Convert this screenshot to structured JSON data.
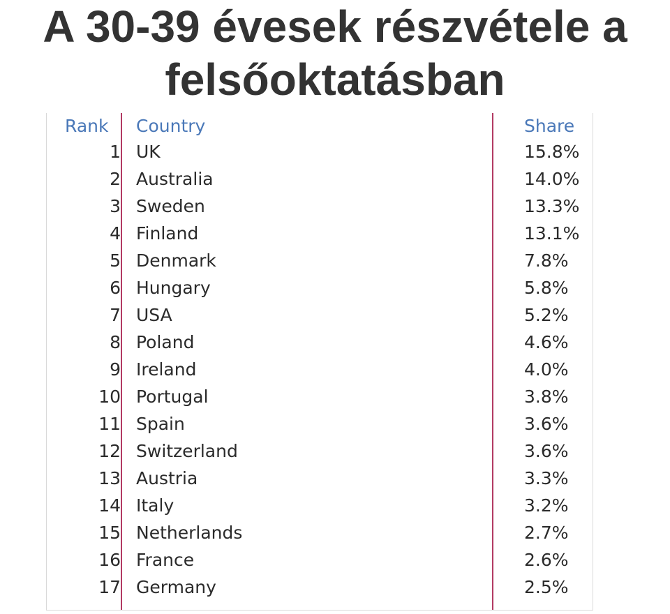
{
  "title": "A 30-39 évesek részvétele a felsőoktatásban",
  "table": {
    "headers": {
      "rank": "Rank",
      "country": "Country",
      "share": "Share"
    },
    "rows": [
      {
        "rank": "1",
        "country": "UK",
        "share": "15.8%"
      },
      {
        "rank": "2",
        "country": "Australia",
        "share": "14.0%"
      },
      {
        "rank": "3",
        "country": "Sweden",
        "share": "13.3%"
      },
      {
        "rank": "4",
        "country": "Finland",
        "share": "13.1%"
      },
      {
        "rank": "5",
        "country": "Denmark",
        "share": "7.8%"
      },
      {
        "rank": "6",
        "country": "Hungary",
        "share": "5.8%"
      },
      {
        "rank": "7",
        "country": "USA",
        "share": "5.2%"
      },
      {
        "rank": "8",
        "country": "Poland",
        "share": "4.6%"
      },
      {
        "rank": "9",
        "country": "Ireland",
        "share": "4.0%"
      },
      {
        "rank": "10",
        "country": "Portugal",
        "share": "3.8%"
      },
      {
        "rank": "11",
        "country": "Spain",
        "share": "3.6%"
      },
      {
        "rank": "12",
        "country": "Switzerland",
        "share": "3.6%"
      },
      {
        "rank": "13",
        "country": "Austria",
        "share": "3.3%"
      },
      {
        "rank": "14",
        "country": "Italy",
        "share": "3.2%"
      },
      {
        "rank": "15",
        "country": "Netherlands",
        "share": "2.7%"
      },
      {
        "rank": "16",
        "country": "France",
        "share": "2.6%"
      },
      {
        "rank": "17",
        "country": "Germany",
        "share": "2.5%"
      }
    ]
  },
  "colors": {
    "title_text": "#333333",
    "header_text": "#4a78b8",
    "divider": "#b23a63",
    "body_text": "#2b2b2b"
  }
}
